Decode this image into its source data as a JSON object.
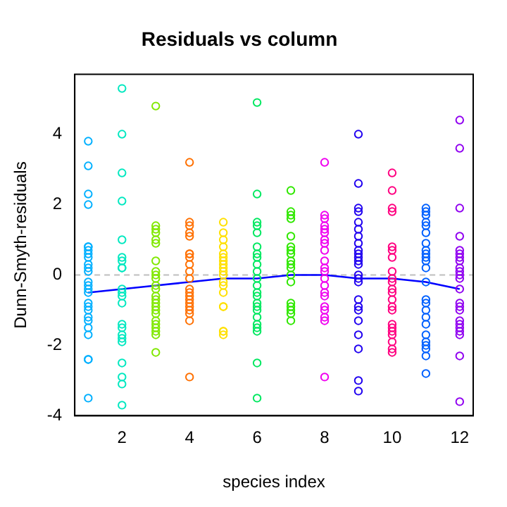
{
  "chart_data": {
    "type": "scatter",
    "title": "Residuals vs column",
    "xlabel": "species index",
    "ylabel": "Dunn-Smyth-residuals",
    "xlim": [
      0.6,
      12.4
    ],
    "xticks": [
      2,
      4,
      6,
      8,
      10,
      12
    ],
    "ylim": [
      -4,
      5.7
    ],
    "yticks": [
      -4,
      -2,
      0,
      2,
      4
    ],
    "grid": false,
    "legend": false,
    "marker": "circle",
    "ref_lines": [
      {
        "axis": "y",
        "value": 0,
        "color": "#bebebe",
        "line_style": "dashed"
      }
    ],
    "series": [
      {
        "color": "#00b0ff",
        "x": [
          1,
          1,
          1,
          1,
          1,
          1,
          1,
          1,
          1,
          1,
          1,
          1,
          1,
          1,
          1,
          1,
          1,
          1,
          1,
          1,
          1,
          1,
          1,
          1,
          1,
          1
        ],
        "values": [
          3.8,
          3.1,
          2.3,
          2.0,
          0.8,
          0.8,
          0.7,
          0.6,
          0.5,
          0.3,
          0.2,
          0.1,
          -0.2,
          -0.3,
          -0.4,
          -0.5,
          -0.8,
          -0.9,
          -1.0,
          -1.2,
          -1.3,
          -1.5,
          -1.7,
          -2.4,
          -2.4,
          -3.5
        ]
      },
      {
        "color": "#00e8c0",
        "x": [
          2,
          2,
          2,
          2,
          2,
          2,
          2,
          2,
          2,
          2,
          2,
          2,
          2,
          2,
          2,
          2,
          2,
          2,
          2,
          2,
          2,
          2
        ],
        "values": [
          5.3,
          4.0,
          2.9,
          2.1,
          1.0,
          0.5,
          0.4,
          0.2,
          0.2,
          -0.4,
          -0.5,
          -0.6,
          -0.8,
          -1.4,
          -1.5,
          -1.7,
          -1.8,
          -1.9,
          -2.5,
          -2.9,
          -3.1,
          -3.7
        ]
      },
      {
        "color": "#80e800",
        "x": [
          3,
          3,
          3,
          3,
          3,
          3,
          3,
          3,
          3,
          3,
          3,
          3,
          3,
          3,
          3,
          3,
          3,
          3,
          3,
          3,
          3,
          3,
          3,
          3
        ],
        "values": [
          4.8,
          1.4,
          1.3,
          1.2,
          1.0,
          0.9,
          0.4,
          0.1,
          0.0,
          -0.1,
          -0.3,
          -0.4,
          -0.6,
          -0.7,
          -0.8,
          -0.9,
          -1.0,
          -1.1,
          -1.3,
          -1.4,
          -1.5,
          -1.6,
          -1.7,
          -2.2
        ]
      },
      {
        "color": "#ff7000",
        "x": [
          4,
          4,
          4,
          4,
          4,
          4,
          4,
          4,
          4,
          4,
          4,
          4,
          4,
          4,
          4,
          4,
          4,
          4,
          4,
          4,
          4
        ],
        "values": [
          3.2,
          1.5,
          1.4,
          1.2,
          1.1,
          0.6,
          0.6,
          0.5,
          0.3,
          0.1,
          -0.1,
          -0.4,
          -0.5,
          -0.6,
          -0.7,
          -0.8,
          -0.9,
          -1.0,
          -1.1,
          -1.3,
          -2.9
        ]
      },
      {
        "color": "#ffe000",
        "x": [
          5,
          5,
          5,
          5,
          5,
          5,
          5,
          5,
          5,
          5,
          5,
          5,
          5,
          5,
          5,
          5,
          5,
          5,
          5
        ],
        "values": [
          1.5,
          1.2,
          1.0,
          0.8,
          0.6,
          0.5,
          0.4,
          0.3,
          0.2,
          0.1,
          0.0,
          -0.2,
          -0.3,
          -0.5,
          -0.9,
          -0.9,
          -1.6,
          -1.6,
          -1.7
        ]
      },
      {
        "color": "#00e860",
        "x": [
          6,
          6,
          6,
          6,
          6,
          6,
          6,
          6,
          6,
          6,
          6,
          6,
          6,
          6,
          6,
          6,
          6,
          6,
          6,
          6,
          6,
          6,
          6
        ],
        "values": [
          4.9,
          2.3,
          1.5,
          1.4,
          1.2,
          0.8,
          0.6,
          0.5,
          0.3,
          0.1,
          -0.1,
          -0.3,
          -0.5,
          -0.6,
          -0.8,
          -0.9,
          -1.0,
          -1.2,
          -1.4,
          -1.5,
          -1.6,
          -2.5,
          -3.5
        ]
      },
      {
        "color": "#30e800",
        "x": [
          7,
          7,
          7,
          7,
          7,
          7,
          7,
          7,
          7,
          7,
          7,
          7,
          7,
          7,
          7,
          7,
          7,
          7
        ],
        "values": [
          2.4,
          1.8,
          1.7,
          1.6,
          1.1,
          0.8,
          0.7,
          0.6,
          0.4,
          0.3,
          0.2,
          0.0,
          -0.2,
          -0.8,
          -0.9,
          -1.0,
          -1.1,
          -1.3
        ]
      },
      {
        "color": "#f000f0",
        "x": [
          8,
          8,
          8,
          8,
          8,
          8,
          8,
          8,
          8,
          8,
          8,
          8,
          8,
          8,
          8,
          8,
          8,
          8,
          8,
          8,
          8
        ],
        "values": [
          3.2,
          1.7,
          1.6,
          1.4,
          1.3,
          1.2,
          1.0,
          0.9,
          0.7,
          0.4,
          0.2,
          0.1,
          -0.1,
          -0.3,
          -0.5,
          -0.6,
          -0.9,
          -1.0,
          -1.2,
          -1.3,
          -2.9
        ]
      },
      {
        "color": "#2000f0",
        "x": [
          9,
          9,
          9,
          9,
          9,
          9,
          9,
          9,
          9,
          9,
          9,
          9,
          9,
          9,
          9,
          9,
          9,
          9,
          9,
          9,
          9,
          9,
          9,
          9
        ],
        "values": [
          4.0,
          2.6,
          1.9,
          1.8,
          1.5,
          1.3,
          1.1,
          0.9,
          0.7,
          0.6,
          0.5,
          0.4,
          0.3,
          0.0,
          -0.1,
          -0.2,
          -0.7,
          -0.9,
          -1.0,
          -1.3,
          -1.7,
          -2.1,
          -3.0,
          -3.3
        ]
      },
      {
        "color": "#ff0080",
        "x": [
          10,
          10,
          10,
          10,
          10,
          10,
          10,
          10,
          10,
          10,
          10,
          10,
          10,
          10,
          10,
          10,
          10,
          10,
          10,
          10,
          10,
          10
        ],
        "values": [
          2.9,
          2.4,
          1.9,
          1.8,
          0.8,
          0.7,
          0.5,
          0.1,
          -0.1,
          -0.2,
          -0.4,
          -0.5,
          -0.7,
          -0.9,
          -1.0,
          -1.4,
          -1.5,
          -1.6,
          -1.7,
          -1.9,
          -2.1,
          -2.2
        ]
      },
      {
        "color": "#0060ff",
        "x": [
          11,
          11,
          11,
          11,
          11,
          11,
          11,
          11,
          11,
          11,
          11,
          11,
          11,
          11,
          11,
          11,
          11,
          11,
          11,
          11,
          11,
          11,
          11,
          11
        ],
        "values": [
          1.9,
          1.8,
          1.7,
          1.5,
          1.4,
          1.2,
          0.9,
          0.7,
          0.6,
          0.5,
          0.4,
          0.2,
          -0.2,
          -0.7,
          -0.8,
          -1.0,
          -1.2,
          -1.4,
          -1.7,
          -1.9,
          -2.0,
          -2.1,
          -2.3,
          -2.8
        ]
      },
      {
        "color": "#9000f0",
        "x": [
          12,
          12,
          12,
          12,
          12,
          12,
          12,
          12,
          12,
          12,
          12,
          12,
          12,
          12,
          12,
          12,
          12,
          12,
          12,
          12,
          12,
          12,
          12
        ],
        "values": [
          4.4,
          3.6,
          1.9,
          1.1,
          0.7,
          0.6,
          0.5,
          0.4,
          0.2,
          0.1,
          0.0,
          -0.1,
          -0.4,
          -0.8,
          -0.9,
          -1.0,
          -1.3,
          -1.4,
          -1.5,
          -1.6,
          -1.7,
          -2.3,
          -3.6
        ]
      },
      {
        "type": "line",
        "color": "#0000ff",
        "marker": "none",
        "x": [
          1,
          2,
          3,
          4,
          5,
          6,
          7,
          8,
          9,
          10,
          11,
          12
        ],
        "values": [
          -0.5,
          -0.4,
          -0.3,
          -0.2,
          -0.1,
          -0.1,
          0.0,
          0.0,
          -0.1,
          -0.1,
          -0.2,
          -0.4
        ]
      }
    ]
  }
}
